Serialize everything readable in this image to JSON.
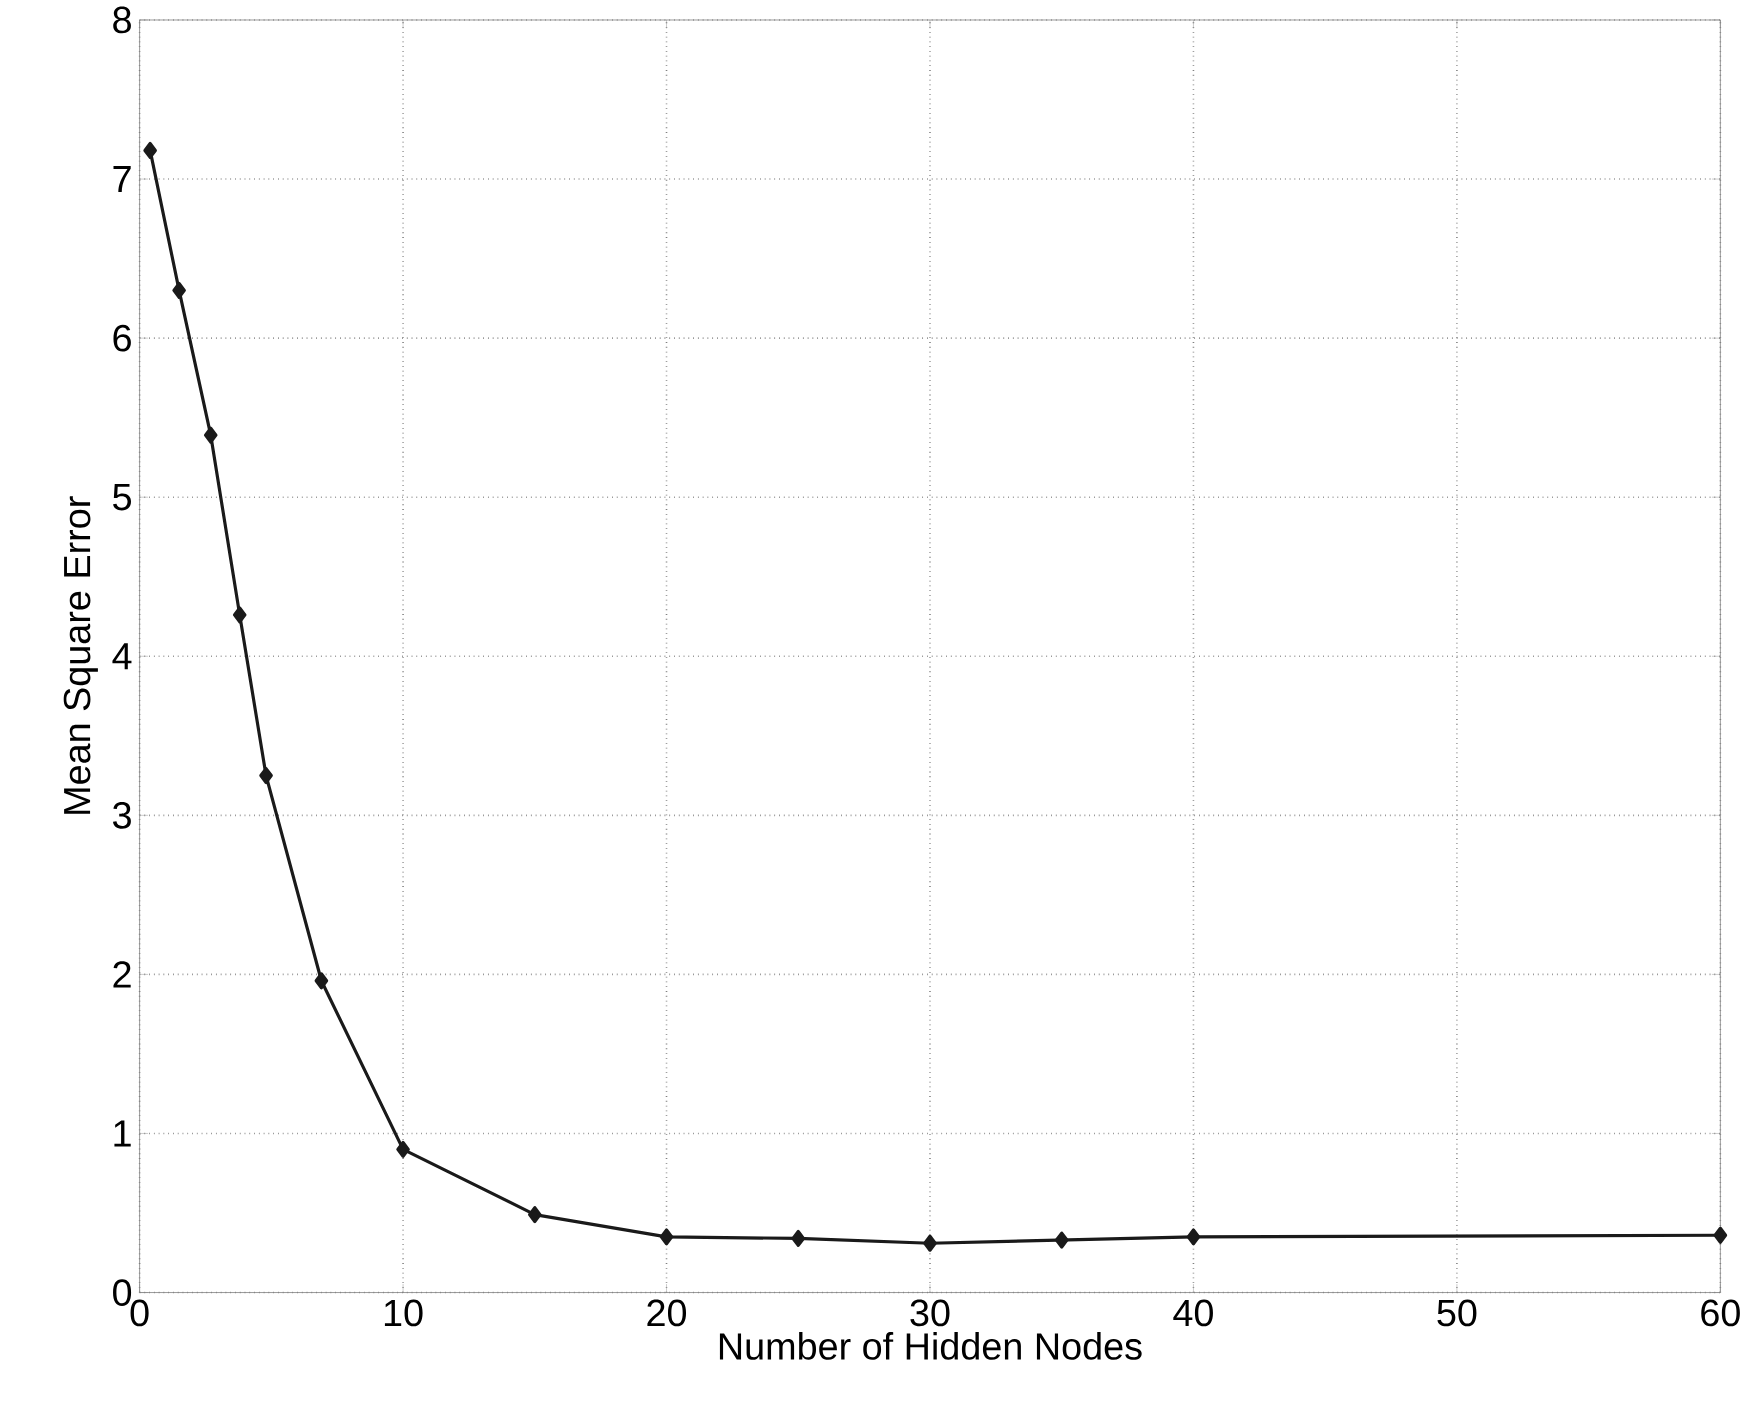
{
  "chart_data": {
    "type": "line",
    "xlabel": "Number of Hidden Nodes",
    "ylabel": "Mean Square Error",
    "x": [
      0.4,
      1.5,
      2.7,
      3.8,
      4.8,
      6.9,
      10,
      15,
      20,
      25,
      30,
      35,
      40,
      60
    ],
    "series": [
      {
        "color": "#1a1a1a",
        "values": [
          7.18,
          6.3,
          5.39,
          4.26,
          3.25,
          1.96,
          0.9,
          0.49,
          0.35,
          0.34,
          0.31,
          0.33,
          0.35,
          0.36
        ]
      }
    ],
    "xlim": [
      0,
      60
    ],
    "ylim": [
      0,
      8
    ],
    "xticks": [
      0,
      10,
      20,
      30,
      40,
      50,
      60
    ],
    "yticks": [
      0,
      1,
      2,
      3,
      4,
      5,
      6,
      7,
      8
    ],
    "grid": true,
    "marker": "diamond",
    "line_style": "solid"
  }
}
